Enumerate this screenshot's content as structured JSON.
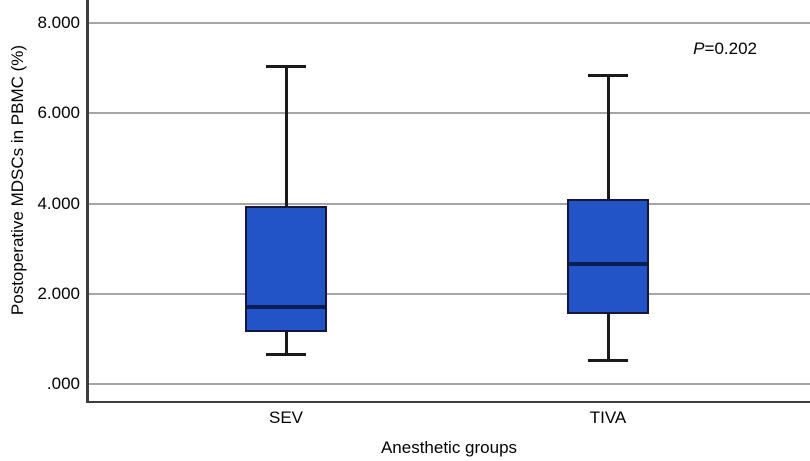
{
  "chart_data": {
    "type": "box",
    "title": "",
    "xlabel": "Anesthetic groups",
    "ylabel": "Postoperative MDSCs in PBMC (%)",
    "annotation": {
      "p_symbol": "P",
      "p_rest": "=0.202"
    },
    "categories": [
      "SEV",
      "TIVA"
    ],
    "series": [
      {
        "name": "SEV",
        "whisker_low": 0.65,
        "q1": 1.15,
        "median": 1.7,
        "q3": 3.95,
        "whisker_high": 7.05
      },
      {
        "name": "TIVA",
        "whisker_low": 0.5,
        "q1": 1.55,
        "median": 2.65,
        "q3": 4.1,
        "whisker_high": 6.85
      }
    ],
    "yticks": [
      {
        "value": 0,
        "label": ".000"
      },
      {
        "value": 2,
        "label": "2.000"
      },
      {
        "value": 4,
        "label": "4.000"
      },
      {
        "value": 6,
        "label": "6.000"
      },
      {
        "value": 8,
        "label": "8.000"
      }
    ],
    "ylim": [
      -0.42,
      8.51
    ],
    "grid": true,
    "legend": "none",
    "colors": {
      "box_fill": "#2254c8",
      "box_border": "#16163a",
      "median": "#0b1e52",
      "whisker": "#1a1a1a",
      "gridline": "#a6a6a6",
      "axis": "#3d3d3d",
      "text": "#000000"
    }
  }
}
